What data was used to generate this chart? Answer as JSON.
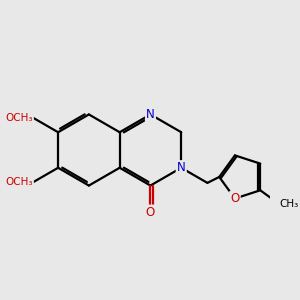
{
  "background_color": "#e8e8e8",
  "bond_color": "#000000",
  "nitrogen_color": "#0000cc",
  "oxygen_color": "#cc0000",
  "line_width": 1.6,
  "dbo": 0.055,
  "figsize": [
    3.0,
    3.0
  ],
  "dpi": 100,
  "xlim": [
    -2.8,
    3.8
  ],
  "ylim": [
    -2.2,
    2.2
  ]
}
